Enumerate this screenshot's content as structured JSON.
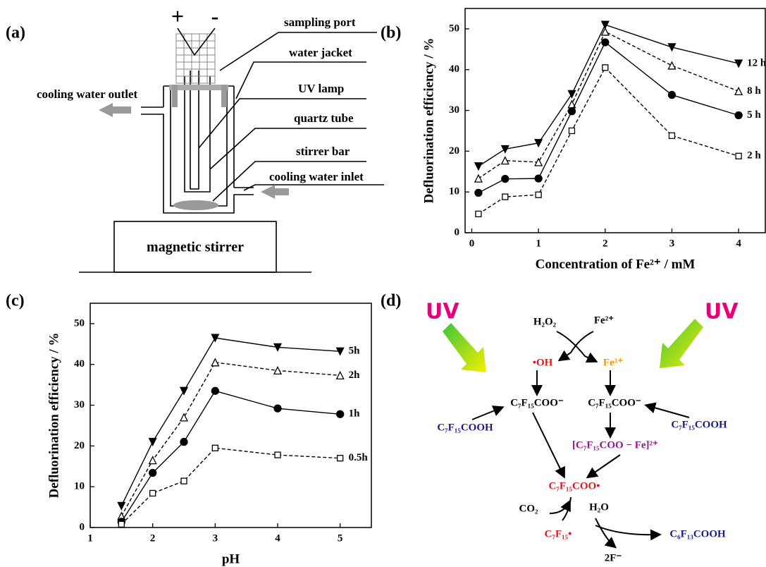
{
  "panel_labels": [
    "(a)",
    "(b)",
    "(c)",
    "(d)"
  ],
  "reactor": {
    "plus": "+",
    "minus": "-",
    "sampling_port": "sampling port",
    "water_jacket": "water jacket",
    "uv_lamp": "UV lamp",
    "quartz_tube": "quartz tube",
    "stirrer_bar": "stirrer bar",
    "outlet": "cooling water outlet",
    "inlet": "cooling water inlet",
    "stirrer": "magnetic stirrer"
  },
  "chart_data": [
    {
      "type": "line",
      "xlabel": "Concentration of Fe²⁺ / mM",
      "ylabel": "Defluorination efficiency / %",
      "x": [
        0.1,
        0.5,
        1,
        1.5,
        2,
        3,
        4
      ],
      "series": [
        {
          "name": "12 h",
          "color": "#000000",
          "marker": "triangle-down-filled",
          "dashed": false,
          "values": [
            16.3,
            20.5,
            22,
            34,
            51,
            45.5,
            41.5
          ]
        },
        {
          "name": "8 h",
          "color": "#000000",
          "marker": "triangle-up-open",
          "dashed": true,
          "values": [
            13.3,
            17.7,
            17.3,
            31.5,
            49.3,
            41,
            34.7
          ]
        },
        {
          "name": "5 h",
          "color": "#000000",
          "marker": "circle-filled",
          "dashed": false,
          "values": [
            9.8,
            13.2,
            13.3,
            29.8,
            46.7,
            33.8,
            28.8
          ]
        },
        {
          "name": "2 h",
          "color": "#000000",
          "marker": "square-open",
          "dashed": true,
          "values": [
            4.6,
            8.8,
            9.3,
            25,
            40.5,
            23.8,
            18.8
          ]
        }
      ],
      "xlim": [
        -0.1,
        4.4
      ],
      "ylim": [
        0,
        55
      ],
      "xticks": [
        0,
        1,
        2,
        3,
        4
      ],
      "yticks": [
        0,
        10,
        20,
        30,
        40,
        50
      ]
    },
    {
      "type": "line",
      "xlabel": "pH",
      "ylabel": "Defluorination efficiency / %",
      "x": [
        1.5,
        2,
        2.5,
        3,
        4,
        5
      ],
      "series": [
        {
          "name": "5h",
          "color": "#000000",
          "marker": "triangle-down-filled",
          "dashed": false,
          "values": [
            5.3,
            21,
            33.5,
            46.5,
            44.2,
            43.2
          ]
        },
        {
          "name": "2h",
          "color": "#000000",
          "marker": "triangle-up-open",
          "dashed": true,
          "values": [
            2.8,
            16.5,
            27,
            40.5,
            38.5,
            37.3
          ]
        },
        {
          "name": "1h",
          "color": "#000000",
          "marker": "circle-filled",
          "dashed": false,
          "values": [
            1.4,
            13.4,
            21,
            33.5,
            29.2,
            27.8
          ]
        },
        {
          "name": "0.5h",
          "color": "#000000",
          "marker": "square-open",
          "dashed": true,
          "values": [
            0.8,
            8.4,
            11.4,
            19.5,
            17.8,
            17
          ]
        }
      ],
      "xlim": [
        1,
        5.5
      ],
      "ylim": [
        0,
        55
      ],
      "xticks": [
        1,
        2,
        3,
        4,
        5
      ],
      "yticks": [
        0,
        10,
        20,
        30,
        40,
        50
      ]
    }
  ],
  "mechanism": {
    "uv_left": "UV",
    "uv_right": "UV",
    "h2o2": "H₂O₂",
    "fe2": "Fe²⁺",
    "oh": "•OH",
    "fe3": "Fe³⁺",
    "acid_anion_left": "C₇F₁₅COO⁻",
    "acid_anion_right": "C₇F₁₅COO⁻",
    "acid_left": "C₇F₁₅COOH",
    "acid_right": "C₇F₁₅COOH",
    "complex": "[C₇F₁₅COO − Fe]²⁺",
    "radical": "C₇F₁₅COO•",
    "co2": "CO₂",
    "h2o": "H₂O",
    "perfluoro_radical": "C₇F₁₅•",
    "product": "C₆F₁₃COOH",
    "fluoride": "2F⁻"
  }
}
